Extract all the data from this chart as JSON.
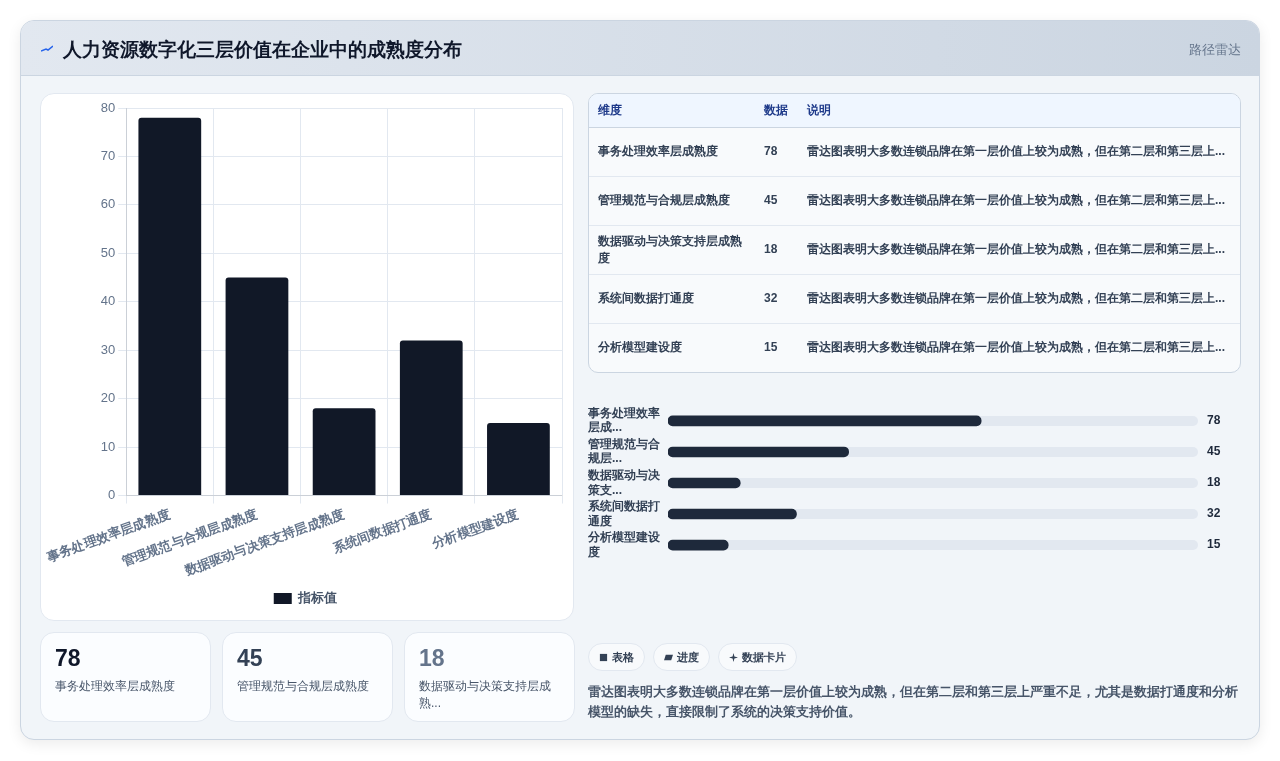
{
  "chart_data": [
    {
      "type": "bar",
      "title": "人力资源数字化三层价值在企业中的成熟度分布",
      "categories": [
        "事务处理效率层成熟度",
        "管理规范与合规层成熟度",
        "数据驱动与决策支持层成熟度",
        "系统间数据打通度",
        "分析模型建设度"
      ],
      "series": [
        {
          "name": "指标值",
          "color": "#111827",
          "values": [
            78,
            45,
            18,
            32,
            15
          ]
        }
      ],
      "ylim": [
        0,
        80
      ],
      "yticks": [
        0,
        10,
        20,
        30,
        40,
        50,
        60,
        70,
        80
      ],
      "grid": true,
      "legend": "bottom",
      "annotations": [
        "路径雷达"
      ]
    },
    {
      "type": "other",
      "categories": [
        "事务处理效率层成熟度",
        "管理规范与合规层成熟度",
        "数据驱动与决策支持层成熟度",
        "系统间数据打通度",
        "分析模型建设度"
      ],
      "values": [
        78,
        45,
        18,
        32,
        15
      ],
      "data_labels": true,
      "annotations": [
        "维度",
        "数据",
        "说明",
        "雷达图表明大多数连锁品牌在第一层价值上较为成熟，但在第二层和第三层上...",
        "雷达图表明大多数连锁品牌在第一层价值上较为成熟，但在第二层和第三层上...",
        "雷达图表明大多数连锁品牌在第一层价值上较为成熟，但在第二层和第三层上...",
        "雷达图表明大多数连锁品牌在第一层价值上较为成熟，但在第二层和第三层上...",
        "雷达图表明大多数连锁品牌在第一层价值上较为成熟，但在第二层和第三层上..."
      ]
    },
    {
      "type": "bar",
      "orientation": "horizontal",
      "categories": [
        "事务处理效率层成...",
        "管理规范与合规层...",
        "数据驱动与决策支...",
        "系统间数据打通度",
        "分析模型建设度"
      ],
      "values": [
        78,
        45,
        18,
        32,
        15
      ],
      "color": "#1e293b",
      "xlim": [
        0,
        132
      ],
      "data_labels": true,
      "tick_labels": "y"
    },
    {
      "type": "other",
      "categories": [
        "事务处理效率层成熟度",
        "管理规范与合规层成熟度",
        "数据驱动与决策支持层成熟..."
      ],
      "values": [
        78,
        45,
        18
      ],
      "data_labels": true
    },
    {
      "type": "other",
      "annotations": [
        "表格",
        "进度",
        "数据卡片",
        "雷达图表明大多数连锁品牌在第一层价值上较为成熟，但在第二层和第三层上严重不足，尤其是数据打通度和分析模型的缺失，直接限制了系统的决策支持价值。"
      ]
    }
  ]
}
